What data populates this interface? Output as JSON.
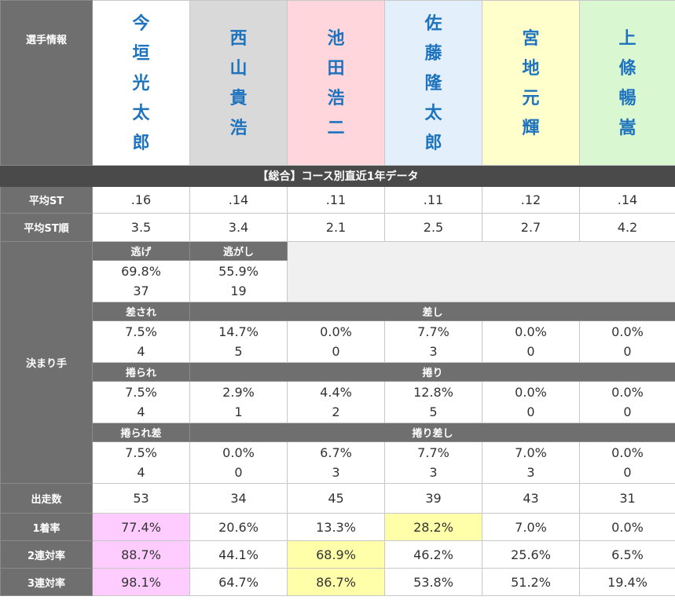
{
  "header_label": "選手情報",
  "racers": [
    {
      "name": "今垣光太郎",
      "bg": "#ffffff"
    },
    {
      "name": "西山貴浩",
      "bg": "#d9d9d9"
    },
    {
      "name": "池田浩二",
      "bg": "#ffd6dc"
    },
    {
      "name": "佐藤隆太郎",
      "bg": "#e3f0fc"
    },
    {
      "name": "宮地元輝",
      "bg": "#ffffcc"
    },
    {
      "name": "上條暢嵩",
      "bg": "#d9f7d0"
    }
  ],
  "section_title": "【総合】コース別直近1年データ",
  "avg_st": {
    "label": "平均ST",
    "values": [
      ".16",
      ".14",
      ".11",
      ".11",
      ".12",
      ".14"
    ]
  },
  "avg_st_rank": {
    "label": "平均ST順",
    "values": [
      "3.5",
      "3.4",
      "2.1",
      "2.5",
      "2.7",
      "4.2"
    ]
  },
  "kimarite": {
    "label": "決まり手",
    "nige": {
      "label": "逃げ",
      "pct": "69.8%",
      "count": "37"
    },
    "nigashi": {
      "label": "逃がし",
      "pct": "55.9%",
      "count": "19"
    },
    "sasare": {
      "label": "差され",
      "pct": "7.5%",
      "count": "4"
    },
    "sashi": {
      "label": "差し",
      "values": [
        {
          "pct": "14.7%",
          "count": "5"
        },
        {
          "pct": "0.0%",
          "count": "0"
        },
        {
          "pct": "7.7%",
          "count": "3"
        },
        {
          "pct": "0.0%",
          "count": "0"
        },
        {
          "pct": "0.0%",
          "count": "0"
        }
      ]
    },
    "makurare": {
      "label": "捲られ",
      "pct": "7.5%",
      "count": "4"
    },
    "makuri": {
      "label": "捲り",
      "values": [
        {
          "pct": "2.9%",
          "count": "1"
        },
        {
          "pct": "4.4%",
          "count": "2"
        },
        {
          "pct": "12.8%",
          "count": "5"
        },
        {
          "pct": "0.0%",
          "count": "0"
        },
        {
          "pct": "0.0%",
          "count": "0"
        }
      ]
    },
    "makurare_sashi": {
      "label": "捲られ差",
      "pct": "7.5%",
      "count": "4"
    },
    "makuri_sashi": {
      "label": "捲り差し",
      "values": [
        {
          "pct": "0.0%",
          "count": "0"
        },
        {
          "pct": "6.7%",
          "count": "3"
        },
        {
          "pct": "7.7%",
          "count": "3"
        },
        {
          "pct": "7.0%",
          "count": "3"
        },
        {
          "pct": "0.0%",
          "count": "0"
        }
      ]
    }
  },
  "starts": {
    "label": "出走数",
    "values": [
      "53",
      "34",
      "45",
      "39",
      "43",
      "31"
    ]
  },
  "win_rate": {
    "label": "1着率",
    "values": [
      "77.4%",
      "20.6%",
      "13.3%",
      "28.2%",
      "7.0%",
      "0.0%"
    ]
  },
  "quinella_rate": {
    "label": "2連対率",
    "values": [
      "88.7%",
      "44.1%",
      "68.9%",
      "46.2%",
      "25.6%",
      "6.5%"
    ]
  },
  "trio_rate": {
    "label": "3連対率",
    "values": [
      "98.1%",
      "64.7%",
      "86.7%",
      "53.8%",
      "51.2%",
      "19.4%"
    ]
  },
  "colors": {
    "highlight_pink": "#ffccff",
    "highlight_yellow": "#ffffaa",
    "name_blue": "#1e73be"
  }
}
